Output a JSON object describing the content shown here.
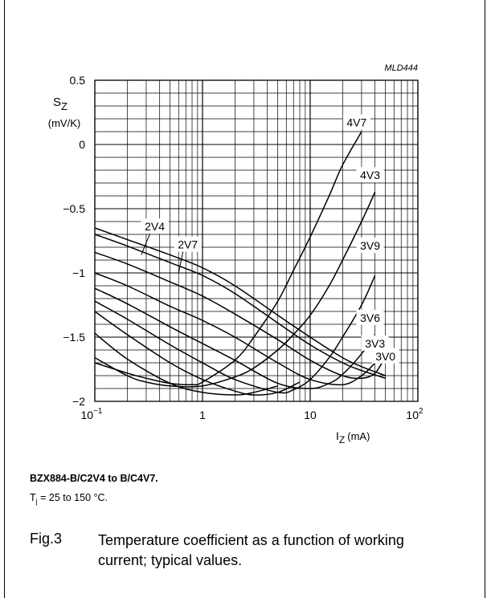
{
  "figure_id": "MLD444",
  "chart_data": {
    "type": "line",
    "ylabel": "S",
    "ylabel_sub": "Z",
    "yunit": "(mV/K)",
    "xlabel": "I",
    "xlabel_sub": "Z",
    "xunit": "(mA)",
    "x_scale": "log",
    "xlim": [
      0.1,
      100
    ],
    "ylim": [
      -2,
      0.5
    ],
    "grid": true,
    "y_ticks": [
      {
        "value": 0.5,
        "label": "0.5"
      },
      {
        "value": 0,
        "label": "0"
      },
      {
        "value": -0.5,
        "label": "−0.5"
      },
      {
        "value": -1,
        "label": "−1"
      },
      {
        "value": -1.5,
        "label": "−1.5"
      },
      {
        "value": -2,
        "label": "−2"
      }
    ],
    "x_ticks": [
      {
        "value": 0.1,
        "base": "10",
        "exp": "−1"
      },
      {
        "value": 1,
        "base": "1",
        "exp": ""
      },
      {
        "value": 10,
        "base": "10",
        "exp": ""
      },
      {
        "value": 100,
        "base": "10",
        "exp": "2"
      }
    ],
    "series": [
      {
        "name": "2V4",
        "x": [
          0.1,
          0.2,
          0.5,
          1,
          2,
          5,
          10,
          20,
          30,
          50
        ],
        "y": [
          -0.65,
          -0.74,
          -0.86,
          -0.96,
          -1.1,
          -1.33,
          -1.5,
          -1.66,
          -1.73,
          -1.8
        ]
      },
      {
        "name": "2V7",
        "x": [
          0.1,
          0.2,
          0.5,
          1,
          2,
          5,
          10,
          20,
          30,
          50
        ],
        "y": [
          -0.7,
          -0.79,
          -0.92,
          -1.02,
          -1.16,
          -1.39,
          -1.56,
          -1.7,
          -1.76,
          -1.82
        ]
      },
      {
        "name": "3V0",
        "x": [
          0.1,
          0.2,
          0.5,
          1,
          2,
          5,
          10,
          20,
          30,
          40,
          50
        ],
        "y": [
          -0.84,
          -0.93,
          -1.07,
          -1.18,
          -1.32,
          -1.52,
          -1.68,
          -1.8,
          -1.82,
          -1.78,
          -1.65
        ]
      },
      {
        "name": "3V3",
        "x": [
          0.1,
          0.2,
          0.5,
          1,
          2,
          5,
          10,
          20,
          30,
          40,
          50
        ],
        "y": [
          -1.0,
          -1.1,
          -1.26,
          -1.37,
          -1.5,
          -1.7,
          -1.83,
          -1.87,
          -1.8,
          -1.7,
          -1.6
        ]
      },
      {
        "name": "3V6",
        "x": [
          0.1,
          0.2,
          0.5,
          1,
          2,
          5,
          10,
          15,
          20,
          30,
          40
        ],
        "y": [
          -1.12,
          -1.24,
          -1.42,
          -1.55,
          -1.68,
          -1.86,
          -1.9,
          -1.86,
          -1.79,
          -1.63,
          -1.48
        ]
      },
      {
        "name": "3V9",
        "x": [
          0.1,
          0.2,
          0.5,
          1,
          2,
          5,
          7,
          10,
          15,
          20,
          30,
          40
        ],
        "y": [
          -1.22,
          -1.36,
          -1.56,
          -1.7,
          -1.83,
          -1.93,
          -1.91,
          -1.83,
          -1.66,
          -1.5,
          -1.25,
          -1.02
        ]
      },
      {
        "name": "",
        "x": [
          0.1,
          0.2,
          0.5,
          1,
          2,
          3,
          5,
          8
        ],
        "y": [
          -1.3,
          -1.48,
          -1.7,
          -1.83,
          -1.92,
          -1.95,
          -1.93,
          -1.85
        ]
      },
      {
        "name": "",
        "x": [
          0.1,
          0.2,
          0.5,
          1,
          2,
          3,
          5
        ],
        "y": [
          -1.47,
          -1.67,
          -1.86,
          -1.93,
          -1.95,
          -1.93,
          -1.88
        ]
      },
      {
        "name": "4V3",
        "x": [
          0.1,
          0.2,
          0.3,
          0.5,
          1,
          2,
          3,
          5,
          7,
          10,
          15,
          20,
          30,
          40
        ],
        "y": [
          -1.66,
          -1.8,
          -1.85,
          -1.88,
          -1.88,
          -1.81,
          -1.74,
          -1.6,
          -1.48,
          -1.33,
          -1.1,
          -0.9,
          -0.6,
          -0.37
        ]
      },
      {
        "name": "4V7",
        "x": [
          0.1,
          0.2,
          0.3,
          0.5,
          0.8,
          1,
          2,
          3,
          5,
          7,
          10,
          15,
          20,
          30
        ],
        "y": [
          -1.7,
          -1.78,
          -1.82,
          -1.86,
          -1.87,
          -1.85,
          -1.68,
          -1.5,
          -1.22,
          -0.98,
          -0.72,
          -0.4,
          -0.16,
          0.1
        ]
      }
    ]
  },
  "caption": {
    "line1": "BZX884-B/C2V4 to B/C4V7.",
    "tj_symbol": "T",
    "tj_sub": "j",
    "tj_rest": " = 25 to 150 °C."
  },
  "figure": {
    "label": "Fig.3",
    "text": "Temperature coefficient as a function of working current; typical values."
  }
}
